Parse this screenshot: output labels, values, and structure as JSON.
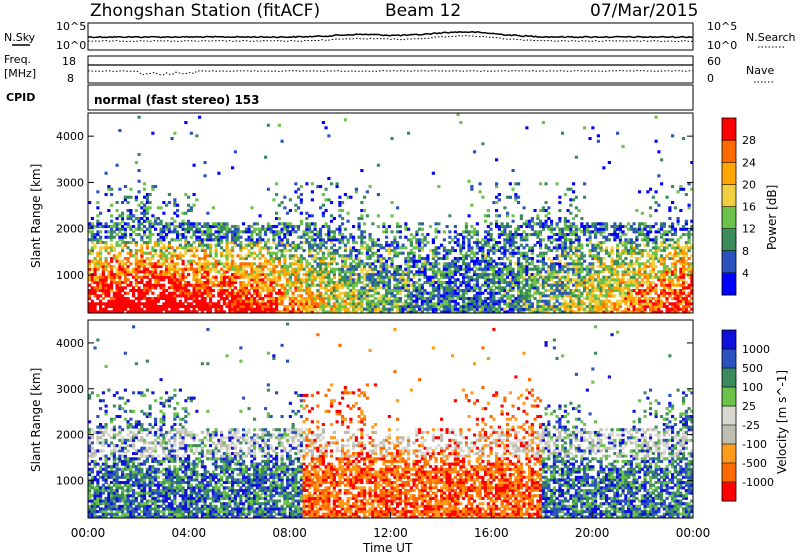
{
  "header": {
    "station": "Zhongshan Station (fitACF)",
    "beam": "Beam 12",
    "date": "07/Mar/2015"
  },
  "noise_panel": {
    "left_label": "N.Sky",
    "right_label": "N.Search",
    "left_ticks": [
      "10^5",
      "10^0"
    ],
    "right_ticks": [
      "10^5",
      "10^0"
    ]
  },
  "freq_panel": {
    "left_label_1": "Freq.",
    "left_label_2": "[MHz]",
    "left_ticks": [
      "18",
      "8"
    ],
    "right_label": "Nave",
    "right_ticks": [
      "60",
      "0"
    ]
  },
  "cpid": {
    "label": "CPID",
    "value": "normal (fast stereo) 153"
  },
  "colors": {
    "power": [
      "#0000ff",
      "#2a52be",
      "#3a8b5c",
      "#6bc24a",
      "#f0d040",
      "#ffa500",
      "#ff6a00",
      "#ff0000"
    ],
    "velocity": [
      "#ff0000",
      "#ff6a00",
      "#ff9a1a",
      "#bdbdb2",
      "#d8d8d0",
      "#6bc24a",
      "#3a8b5c",
      "#2a52be",
      "#1010dd"
    ]
  },
  "chart_data": [
    {
      "type": "heatmap",
      "name": "power",
      "ylabel": "Slant Range [km]",
      "yticks": [
        "1000",
        "2000",
        "3000",
        "4000"
      ],
      "ylim": [
        180,
        4500
      ],
      "xlim_hours": [
        0,
        24
      ],
      "colorbar_label": "Power [dB]",
      "colorbar_ticks": [
        "4",
        "8",
        "12",
        "16",
        "20",
        "24",
        "28"
      ],
      "colorbar_range": [
        0,
        32
      ]
    },
    {
      "type": "heatmap",
      "name": "velocity",
      "ylabel": "Slant Range [km]",
      "yticks": [
        "1000",
        "2000",
        "3000",
        "4000"
      ],
      "ylim": [
        180,
        4500
      ],
      "xlim_hours": [
        0,
        24
      ],
      "colorbar_label": "Velocity [m s^-1]",
      "colorbar_ticks": [
        "-1000",
        "-500",
        "-100",
        "-25",
        "25",
        "100",
        "500",
        "1000"
      ]
    }
  ],
  "x_axis": {
    "ticks": [
      "00:00",
      "04:00",
      "08:00",
      "12:00",
      "16:00",
      "20:00",
      "00:00"
    ],
    "label": "Time UT"
  }
}
